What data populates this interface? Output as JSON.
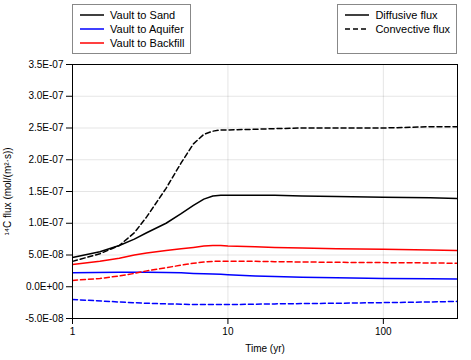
{
  "chart_data": {
    "type": "line",
    "xlabel": "Time (yr)",
    "ylabel": "¹⁴C flux (mol/(m²·s))",
    "log": "x",
    "grid": true,
    "xlim": [
      1,
      300
    ],
    "xticks": [
      1,
      10,
      100
    ],
    "ylim": [
      -5e-08,
      3.5e-07
    ],
    "yticks": [
      {
        "value": -5e-08,
        "label": "-5.0E-08"
      },
      {
        "value": 0.0,
        "label": "0.0E+00"
      },
      {
        "value": 5e-08,
        "label": "5.0E-08"
      },
      {
        "value": 1e-07,
        "label": "1.0E-07"
      },
      {
        "value": 1.5e-07,
        "label": "1.5E-07"
      },
      {
        "value": 2e-07,
        "label": "2.0E-07"
      },
      {
        "value": 2.5e-07,
        "label": "2.5E-07"
      },
      {
        "value": 3e-07,
        "label": "3.0E-07"
      },
      {
        "value": 3.5e-07,
        "label": "3.5E-07"
      }
    ],
    "series": [
      {
        "color": "black",
        "line_style": "solid",
        "x": [
          1,
          1.5,
          2,
          2.5,
          3,
          4,
          5,
          6,
          7,
          8,
          9,
          10,
          15,
          20,
          30,
          50,
          100,
          200,
          300
        ],
        "values": [
          4.6e-08,
          5.5e-08,
          6.5e-08,
          7.5e-08,
          8.5e-08,
          1e-07,
          1.15e-07,
          1.28e-07,
          1.38e-07,
          1.43e-07,
          1.44e-07,
          1.44e-07,
          1.44e-07,
          1.44e-07,
          1.43e-07,
          1.42e-07,
          1.41e-07,
          1.4e-07,
          1.39e-07
        ]
      },
      {
        "color": "black",
        "line_style": "dashed",
        "x": [
          1,
          1.5,
          2,
          2.5,
          3,
          4,
          5,
          6,
          7,
          8,
          9,
          10,
          15,
          20,
          30,
          50,
          100,
          200,
          300
        ],
        "values": [
          4e-08,
          5.2e-08,
          6.5e-08,
          8.5e-08,
          1.1e-07,
          1.55e-07,
          1.95e-07,
          2.25e-07,
          2.4e-07,
          2.45e-07,
          2.47e-07,
          2.47e-07,
          2.48e-07,
          2.49e-07,
          2.5e-07,
          2.5e-07,
          2.5e-07,
          2.52e-07,
          2.52e-07
        ]
      },
      {
        "color": "blue",
        "line_style": "solid",
        "x": [
          1,
          2,
          3,
          4,
          5,
          6,
          7,
          8,
          9,
          10,
          15,
          20,
          30,
          50,
          100,
          200,
          300
        ],
        "values": [
          2.2e-08,
          2.3e-08,
          2.3e-08,
          2.25e-08,
          2.2e-08,
          2.1e-08,
          2.05e-08,
          2e-08,
          1.95e-08,
          1.9e-08,
          1.7e-08,
          1.6e-08,
          1.5e-08,
          1.4e-08,
          1.3e-08,
          1.25e-08,
          1.2e-08
        ]
      },
      {
        "color": "blue",
        "line_style": "dashed",
        "x": [
          1,
          2,
          3,
          4,
          5,
          6,
          7,
          8,
          9,
          10,
          15,
          20,
          30,
          50,
          100,
          200,
          300
        ],
        "values": [
          -2e-08,
          -2.4e-08,
          -2.6e-08,
          -2.7e-08,
          -2.75e-08,
          -2.8e-08,
          -2.8e-08,
          -2.8e-08,
          -2.8e-08,
          -2.8e-08,
          -2.75e-08,
          -2.7e-08,
          -2.65e-08,
          -2.6e-08,
          -2.5e-08,
          -2.4e-08,
          -2.3e-08
        ]
      },
      {
        "color": "red",
        "line_style": "solid",
        "x": [
          1,
          1.5,
          2,
          2.5,
          3,
          4,
          5,
          6,
          7,
          8,
          9,
          10,
          15,
          20,
          30,
          50,
          100,
          200,
          300
        ],
        "values": [
          3.5e-08,
          4e-08,
          4.5e-08,
          5e-08,
          5.3e-08,
          5.7e-08,
          6e-08,
          6.2e-08,
          6.4e-08,
          6.5e-08,
          6.5e-08,
          6.4e-08,
          6.3e-08,
          6.2e-08,
          6.1e-08,
          6e-08,
          5.9e-08,
          5.8e-08,
          5.7e-08
        ]
      },
      {
        "color": "red",
        "line_style": "dashed",
        "x": [
          1,
          1.5,
          2,
          2.5,
          3,
          4,
          5,
          6,
          7,
          8,
          9,
          10,
          15,
          20,
          30,
          50,
          100,
          200,
          300
        ],
        "values": [
          1e-08,
          1.3e-08,
          1.7e-08,
          2.1e-08,
          2.5e-08,
          3e-08,
          3.4e-08,
          3.7e-08,
          3.9e-08,
          4e-08,
          4e-08,
          4e-08,
          4e-08,
          3.95e-08,
          3.9e-08,
          3.85e-08,
          3.8e-08,
          3.75e-08,
          3.7e-08
        ]
      }
    ],
    "legends": [
      {
        "legend": "upper left",
        "entries": [
          {
            "name": "Vault to Sand",
            "color": "black",
            "line_style": "solid"
          },
          {
            "name": "Vault to Aquifer",
            "color": "blue",
            "line_style": "solid"
          },
          {
            "name": "Vault to Backfill",
            "color": "red",
            "line_style": "solid"
          }
        ]
      },
      {
        "legend": "upper right",
        "entries": [
          {
            "name": "Diffusive flux",
            "color": "black",
            "line_style": "solid"
          },
          {
            "name": "Convective flux",
            "color": "black",
            "line_style": "dashed"
          }
        ]
      }
    ]
  }
}
